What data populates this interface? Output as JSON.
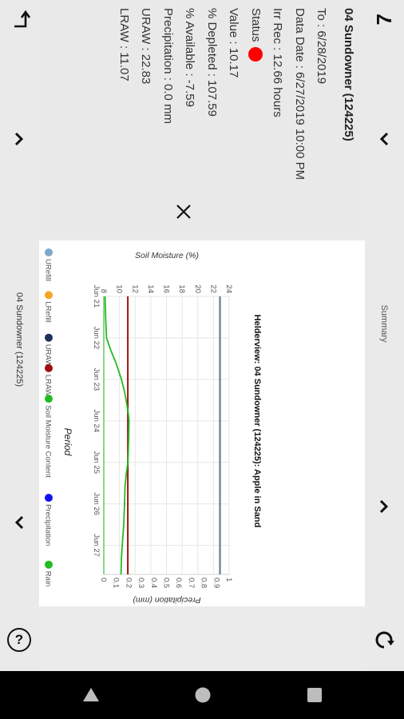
{
  "station": {
    "title": "04 Sundowner (124225)",
    "to": "To : 6/28/2019",
    "data_date": "Data Date : 6/27/2019 10:00 PM",
    "irr_rec": "Irr Rec : 12.66 hours",
    "status_label": "Status",
    "status_color": "#ff0000",
    "value": "Value : 10.17",
    "pct_depleted": "% Depleted : 107.59",
    "pct_available": "% Available : -7.59",
    "precipitation": "Precipitation : 0.0 mm",
    "uraw": "URAW : 22.83",
    "lraw": "LRAW : 11.07"
  },
  "tabs": {
    "summary": "Summary",
    "station": "04 Sundowner (124225)"
  },
  "icons": {
    "menu": "7",
    "help": "?"
  },
  "chart_data": {
    "type": "line",
    "title": "Helderview: 04 Sundowner (124225): Apple in Sand",
    "xlabel": "Period",
    "ylabel": "Soil Moisture (%)",
    "y2label": "Precipitation (mm)",
    "categories": [
      "Jun 21",
      "Jun 22",
      "Jun 23",
      "Jun 24",
      "Jun 25",
      "Jun 26",
      "Jun 27"
    ],
    "ylim": [
      8,
      24
    ],
    "yticks": [
      "8",
      "10",
      "12",
      "14",
      "16",
      "18",
      "20",
      "22",
      "24"
    ],
    "y2lim": [
      0,
      1
    ],
    "y2ticks": [
      "0",
      "0.1",
      "0.2",
      "0.3",
      "0.4",
      "0.5",
      "0.6",
      "0.7",
      "0.8",
      "0.9",
      "1"
    ],
    "grid": true,
    "legend_position": "bottom",
    "legend": [
      {
        "name": "URefill",
        "color": "#7fa8c9"
      },
      {
        "name": "LRefill",
        "color": "#f5a623"
      },
      {
        "name": "URAW",
        "color": "#1f2f55"
      },
      {
        "name": "LRAW",
        "color": "#a01010"
      },
      {
        "name": "Soil Moisture Content",
        "color": "#22bb22"
      },
      {
        "name": "Precipitation",
        "color": "#1010ee"
      },
      {
        "name": "Rain",
        "color": "#22bb22"
      }
    ],
    "series": [
      {
        "name": "URAW",
        "color": "#6b7a8a",
        "x": [
          0,
          6.7
        ],
        "values": [
          22.83,
          22.83
        ]
      },
      {
        "name": "LRAW",
        "color": "#a01010",
        "x": [
          0,
          6.7
        ],
        "values": [
          11.07,
          11.07
        ]
      },
      {
        "name": "Soil Moisture Content",
        "color": "#22bb22",
        "x": [
          0,
          0.3,
          0.6,
          1.0,
          1.3,
          1.6,
          2.0,
          2.3,
          2.6,
          2.85,
          3.0,
          3.2,
          3.5,
          3.8,
          4.0,
          4.3,
          4.6,
          5.0,
          5.5,
          6.0,
          6.3,
          6.7
        ],
        "values": [
          8.15,
          8.2,
          8.25,
          8.35,
          8.9,
          9.55,
          10.25,
          10.65,
          10.95,
          11.15,
          11.22,
          11.2,
          11.17,
          11.12,
          11.08,
          10.85,
          10.7,
          10.65,
          10.55,
          10.35,
          10.25,
          10.2
        ]
      },
      {
        "name": "Rain",
        "color": "#22bb22",
        "x": [
          0,
          6.7
        ],
        "values": [
          8.0,
          8.0
        ]
      }
    ]
  }
}
